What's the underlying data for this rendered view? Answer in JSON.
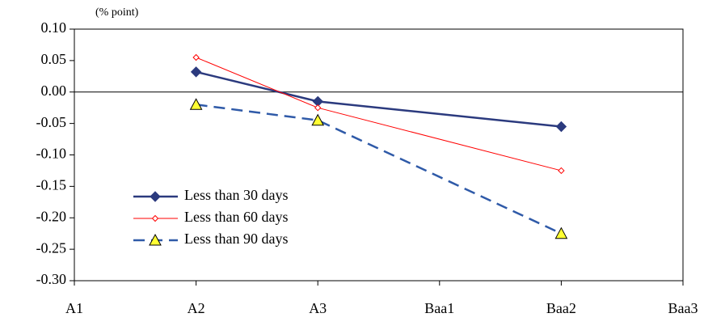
{
  "chart_data": {
    "type": "line",
    "axis_label": "(% point)",
    "x": [
      1,
      2,
      4
    ],
    "xlim": [
      0,
      5
    ],
    "xticks": [
      {
        "value": 0,
        "label": "A1"
      },
      {
        "value": 1,
        "label": "A2"
      },
      {
        "value": 2,
        "label": "A3"
      },
      {
        "value": 3,
        "label": "Baa1"
      },
      {
        "value": 4,
        "label": "Baa2"
      },
      {
        "value": 5,
        "label": "Baa3"
      }
    ],
    "ylim": [
      -0.3,
      0.1
    ],
    "yticks": [
      {
        "value": 0.1,
        "label": "0.10"
      },
      0.05,
      {
        "value": 0,
        "label": "0.00"
      },
      -0.05,
      {
        "value": -0.1,
        "label": "-0.10"
      },
      -0.15,
      {
        "value": -0.2,
        "label": "-0.20"
      },
      -0.25,
      {
        "value": -0.3,
        "label": "-0.30"
      }
    ],
    "series": [
      {
        "name": "Less than 30 days",
        "color": "#2b3a7e",
        "marker": "diamond",
        "dashed": false,
        "values": [
          0.032,
          -0.015,
          -0.055
        ]
      },
      {
        "name": "Less than 60 days",
        "color": "#ff0000",
        "marker": "open-diamond",
        "dashed": false,
        "values": [
          0.055,
          -0.025,
          -0.125
        ]
      },
      {
        "name": "Less than 90 days",
        "color": "#2f5aa8",
        "marker": "triangle",
        "dashed": true,
        "values": [
          -0.02,
          -0.045,
          -0.225
        ]
      }
    ]
  }
}
